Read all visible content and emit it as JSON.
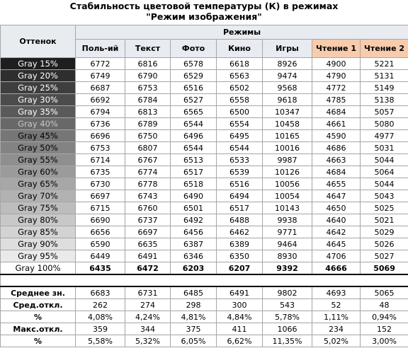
{
  "title": [
    "Стабильность цветовой температуры (К) в режимах",
    "\"Режим изображения\""
  ],
  "table": {
    "header_left": "Оттенок",
    "group": "Режимы",
    "columns": [
      "Поль-ий",
      "Текст",
      "Фото",
      "Кино",
      "Игры",
      "Чтение 1",
      "Чтение 2"
    ],
    "rows": [
      [
        "Gray 15%",
        "6772",
        "6816",
        "6578",
        "6618",
        "8926",
        "4900",
        "5221"
      ],
      [
        "Gray 20%",
        "6749",
        "6790",
        "6529",
        "6563",
        "9474",
        "4790",
        "5131"
      ],
      [
        "Gray 25%",
        "6687",
        "6753",
        "6516",
        "6502",
        "9568",
        "4772",
        "5149"
      ],
      [
        "Gray 30%",
        "6692",
        "6784",
        "6527",
        "6558",
        "9618",
        "4785",
        "5138"
      ],
      [
        "Gray 35%",
        "6794",
        "6813",
        "6565",
        "6500",
        "10347",
        "4684",
        "5057"
      ],
      [
        "Gray 40%",
        "6736",
        "6789",
        "6544",
        "6554",
        "10458",
        "4661",
        "5080"
      ],
      [
        "Gray 45%",
        "6696",
        "6750",
        "6496",
        "6495",
        "10165",
        "4590",
        "4977"
      ],
      [
        "Gray 50%",
        "6753",
        "6807",
        "6544",
        "6544",
        "10016",
        "4686",
        "5031"
      ],
      [
        "Gray 55%",
        "6714",
        "6767",
        "6513",
        "6533",
        "9987",
        "4663",
        "5044"
      ],
      [
        "Gray 60%",
        "6735",
        "6774",
        "6517",
        "6539",
        "10126",
        "4684",
        "5064"
      ],
      [
        "Gray 65%",
        "6730",
        "6778",
        "6518",
        "6516",
        "10056",
        "4655",
        "5044"
      ],
      [
        "Gray 70%",
        "6697",
        "6743",
        "6490",
        "6494",
        "10054",
        "4647",
        "5043"
      ],
      [
        "Gray 75%",
        "6715",
        "6760",
        "6501",
        "6517",
        "10143",
        "4650",
        "5025"
      ],
      [
        "Gray 80%",
        "6690",
        "6737",
        "6492",
        "6488",
        "9938",
        "4640",
        "5021"
      ],
      [
        "Gray 85%",
        "6656",
        "6697",
        "6456",
        "6462",
        "9771",
        "4642",
        "5029"
      ],
      [
        "Gray 90%",
        "6590",
        "6635",
        "6387",
        "6389",
        "9464",
        "4645",
        "5026"
      ],
      [
        "Gray 95%",
        "6449",
        "6491",
        "6346",
        "6350",
        "8930",
        "4706",
        "5027"
      ],
      [
        "Gray 100%",
        "6435",
        "6472",
        "6203",
        "6207",
        "9392",
        "4666",
        "5069"
      ]
    ],
    "stats": [
      [
        "Среднее зн.",
        "6683",
        "6731",
        "6485",
        "6491",
        "9802",
        "4693",
        "5065"
      ],
      [
        "Сред.откл.",
        "262",
        "274",
        "298",
        "300",
        "543",
        "52",
        "48"
      ],
      [
        "%",
        "4,08%",
        "4,24%",
        "4,81%",
        "4,84%",
        "5,78%",
        "1,11%",
        "0,94%"
      ],
      [
        "Макс.откл.",
        "359",
        "344",
        "375",
        "411",
        "1066",
        "234",
        "152"
      ],
      [
        "%",
        "5,58%",
        "5,32%",
        "6,05%",
        "6,62%",
        "11,35%",
        "5,02%",
        "3,00%"
      ]
    ]
  }
}
